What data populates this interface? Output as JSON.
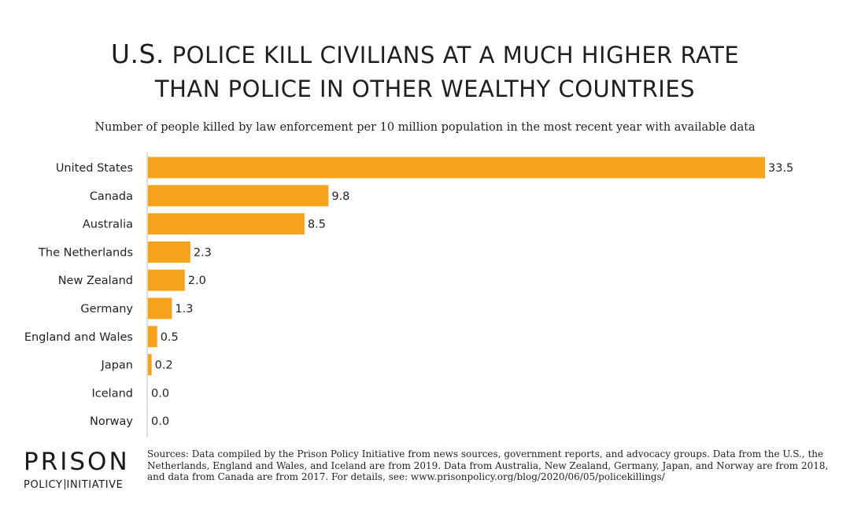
{
  "title": {
    "line1_lead": "U.S.",
    "line1_rest": " police kill civilians at a much higher rate",
    "line2": "than police in other wealthy countries"
  },
  "subtitle": "Number of people killed by law enforcement per 10 million population in the most recent year with available data",
  "colors": {
    "bar": "#f7a21b",
    "axis": "#bbbbbb"
  },
  "chart_data": {
    "type": "bar",
    "orientation": "horizontal",
    "title": "U.S. police kill civilians at a much higher rate than police in other wealthy countries",
    "subtitle": "Number of people killed by law enforcement per 10 million population in the most recent year with available data",
    "categories": [
      "United States",
      "Canada",
      "Australia",
      "The Netherlands",
      "New Zealand",
      "Germany",
      "England and Wales",
      "Japan",
      "Iceland",
      "Norway"
    ],
    "values": [
      33.5,
      9.8,
      8.5,
      2.3,
      2.0,
      1.3,
      0.5,
      0.2,
      0.0,
      0.0
    ],
    "value_labels": [
      "33.5",
      "9.8",
      "8.5",
      "2.3",
      "2.0",
      "1.3",
      "0.5",
      "0.2",
      "0.0",
      "0.0"
    ],
    "xlabel": "",
    "ylabel": "",
    "xlim": [
      0,
      33.5
    ],
    "grid": false,
    "legend": "none"
  },
  "logo": {
    "top": "PRISON",
    "bottom_left": "POLICY",
    "bottom_right": "INITIATIVE"
  },
  "sources": "Sources: Data compiled by the Prison Policy Initiative from news sources, government reports, and advocacy groups. Data from the U.S., the Netherlands, England and Wales, and Iceland are from 2019. Data from Australia, New Zealand, Germany, Japan, and Norway are from 2018, and data from Canada are from 2017. For details,  see: www.prisonpolicy.org/blog/2020/06/05/policekillings/"
}
